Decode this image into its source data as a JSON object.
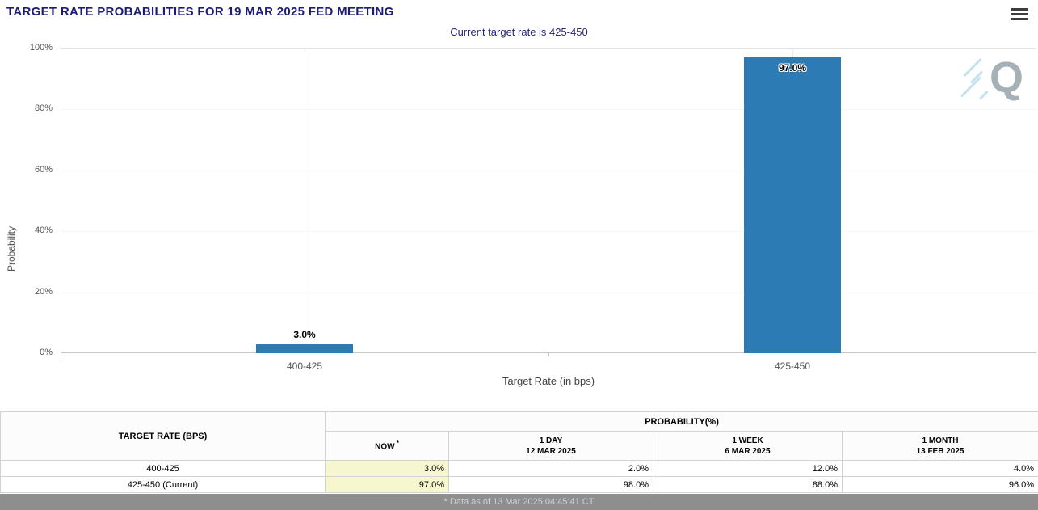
{
  "header": {
    "title": "TARGET RATE PROBABILITIES FOR 19 MAR 2025 FED MEETING",
    "subtitle": "Current target rate is 425-450"
  },
  "chart_data": {
    "type": "bar",
    "title": "TARGET RATE PROBABILITIES FOR 19 MAR 2025 FED MEETING",
    "subtitle": "Current target rate is 425-450",
    "categories": [
      "400-425",
      "425-450"
    ],
    "values": [
      3.0,
      97.0
    ],
    "value_labels": [
      "3.0%",
      "97.0%"
    ],
    "xlabel": "Target Rate (in bps)",
    "ylabel": "Probability",
    "ylim": [
      0,
      100
    ],
    "yticks": [
      0,
      20,
      40,
      60,
      80,
      100
    ],
    "ytick_labels": [
      "0%",
      "20%",
      "40%",
      "60%",
      "80%",
      "100%"
    ],
    "bar_color": "#2c7bb4",
    "grid": "top-line-and-category-centers",
    "legend": "none"
  },
  "watermark": {
    "letter": "Q"
  },
  "table": {
    "rate_header": "TARGET RATE (BPS)",
    "group_header": "PROBABILITY(%)",
    "columns": [
      {
        "label": "NOW",
        "sup": "*",
        "sub": ""
      },
      {
        "label": "1 DAY",
        "sup": "",
        "sub": "12 MAR 2025"
      },
      {
        "label": "1 WEEK",
        "sup": "",
        "sub": "6 MAR 2025"
      },
      {
        "label": "1 MONTH",
        "sup": "",
        "sub": "13 FEB 2025"
      }
    ],
    "rows": [
      {
        "rate": "400-425",
        "values": [
          "3.0%",
          "2.0%",
          "12.0%",
          "4.0%"
        ]
      },
      {
        "rate": "425-450 (Current)",
        "values": [
          "97.0%",
          "98.0%",
          "88.0%",
          "96.0%"
        ]
      }
    ],
    "highlight_color": "#f7f7cf"
  },
  "footer": {
    "note": "* Data as of 13 Mar 2025 04:45:41 CT"
  },
  "colors": {
    "title_navy": "#1d1d75",
    "bar_blue": "#2c7bb4",
    "now_highlight": "#f7f7cf"
  }
}
